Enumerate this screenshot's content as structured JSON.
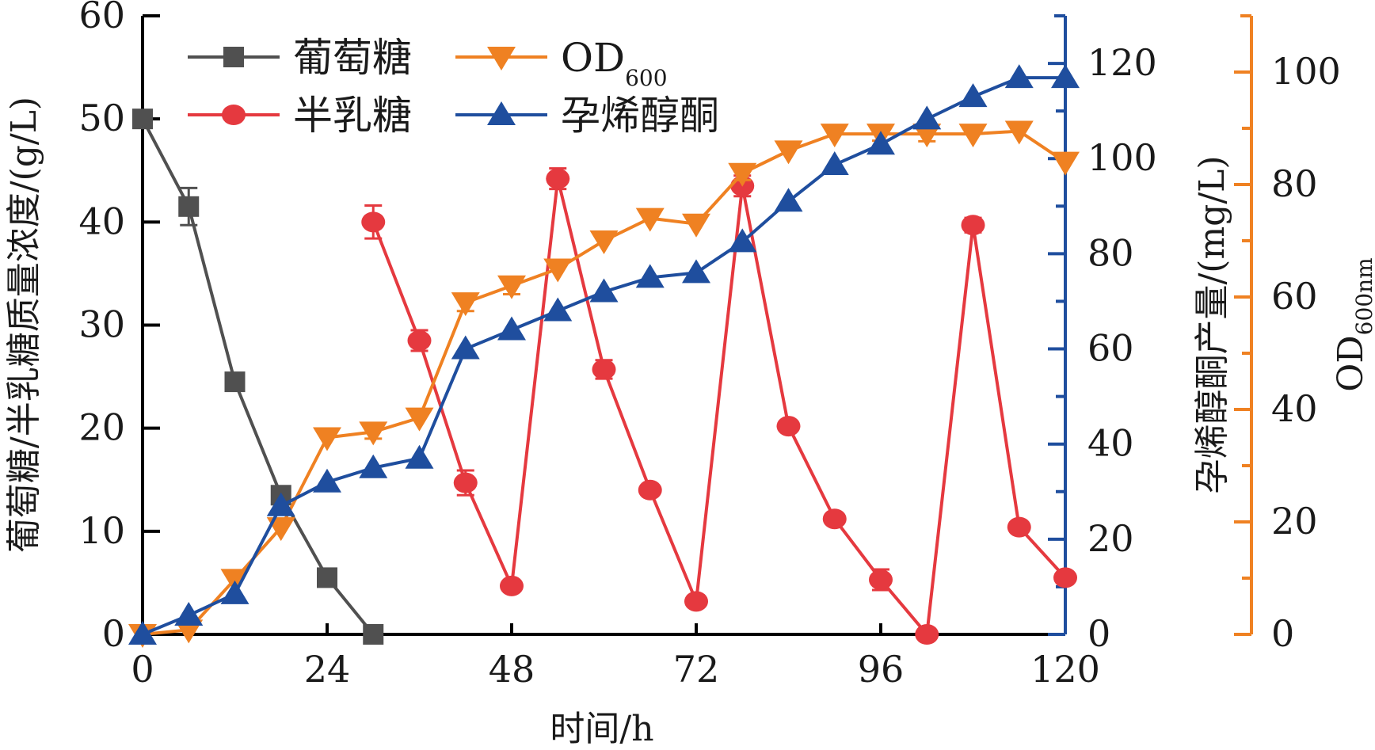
{
  "chart_data": {
    "type": "line",
    "title": "",
    "xlabel": "时间/h",
    "x": [
      0,
      6,
      12,
      18,
      24,
      30,
      36,
      42,
      48,
      54,
      60,
      66,
      72,
      78,
      84,
      90,
      96,
      102,
      108,
      114,
      120
    ],
    "xlim": [
      0,
      120
    ],
    "xticks": [
      "0",
      "24",
      "48",
      "72",
      "96",
      "120"
    ],
    "xtick_values": [
      0,
      24,
      48,
      72,
      96,
      120
    ],
    "axes": {
      "left": {
        "label": "葡萄糖/半乳糖质量浓度/(g/L)",
        "ylim": [
          0,
          60
        ],
        "ticks": [
          0,
          10,
          20,
          30,
          40,
          50,
          60
        ],
        "color": "#000000"
      },
      "right1": {
        "label": "孕烯醇酮产量/(mg/L)",
        "ylim": [
          0,
          130
        ],
        "ticks": [
          0,
          20,
          40,
          60,
          80,
          100,
          120
        ],
        "color": "#1f4e9e"
      },
      "right2": {
        "label_main": "OD",
        "label_sub": "600nm",
        "ylim": [
          0,
          110
        ],
        "ticks": [
          0,
          20,
          40,
          60,
          80,
          100
        ],
        "color": "#ef8122"
      }
    },
    "legend": {
      "placement": "top-left",
      "columns": 2
    },
    "series": [
      {
        "name": "葡萄糖",
        "axis": "left",
        "color": "#505050",
        "marker": "square",
        "x": [
          0,
          6,
          12,
          18,
          24,
          30
        ],
        "values": [
          50,
          41.5,
          24.5,
          13.5,
          5.5,
          0
        ],
        "errors": [
          0,
          1.8,
          0,
          0,
          0.5,
          0
        ]
      },
      {
        "name": "半乳糖",
        "axis": "left",
        "color": "#e5393f",
        "marker": "circle",
        "x": [
          30,
          36,
          42,
          48,
          54,
          60,
          66,
          72,
          78,
          84,
          90,
          96,
          102,
          108,
          114,
          120
        ],
        "values": [
          40,
          28.5,
          14.7,
          4.7,
          44.2,
          25.7,
          14,
          3.2,
          43.5,
          20.2,
          11.2,
          5.3,
          0,
          39.7,
          10.4,
          5.5
        ],
        "errors": [
          1.6,
          1.0,
          1.2,
          0,
          1.0,
          0.9,
          0,
          0,
          1.0,
          0,
          0,
          1.0,
          0,
          0.7,
          0,
          0
        ]
      },
      {
        "name": "OD600",
        "legend_main": "OD",
        "legend_sub": "600",
        "axis": "right2",
        "color": "#ef8122",
        "marker": "triangle-down",
        "x": [
          0,
          6,
          12,
          18,
          24,
          30,
          36,
          42,
          48,
          54,
          60,
          66,
          72,
          78,
          84,
          90,
          96,
          102,
          108,
          114,
          120
        ],
        "values": [
          0,
          0.8,
          9.8,
          19,
          35,
          36,
          38.5,
          59,
          62,
          65,
          70,
          74,
          73,
          82,
          86,
          89,
          89,
          89,
          89,
          89.5,
          84
        ],
        "errors": [
          0,
          0,
          0,
          0,
          0,
          1.2,
          0,
          1.5,
          1.5,
          0,
          0,
          0,
          0,
          1.2,
          0,
          0,
          1.2,
          1.3,
          0,
          0,
          0
        ]
      },
      {
        "name": "孕烯醇酮",
        "axis": "right1",
        "color": "#1f4e9e",
        "marker": "triangle-up",
        "x": [
          0,
          6,
          12,
          18,
          24,
          30,
          36,
          42,
          48,
          54,
          60,
          66,
          72,
          78,
          84,
          90,
          96,
          102,
          108,
          114,
          120
        ],
        "values": [
          0,
          4,
          8.5,
          27,
          32,
          35,
          37,
          60,
          64,
          68,
          72,
          75,
          76,
          82.5,
          91,
          98.7,
          103,
          108.3,
          113,
          117,
          117
        ],
        "errors": [
          0,
          0,
          0,
          0,
          0,
          0,
          0,
          0,
          0,
          0,
          0,
          0,
          0,
          0,
          0,
          0,
          0,
          0,
          0,
          0,
          0
        ]
      }
    ]
  }
}
